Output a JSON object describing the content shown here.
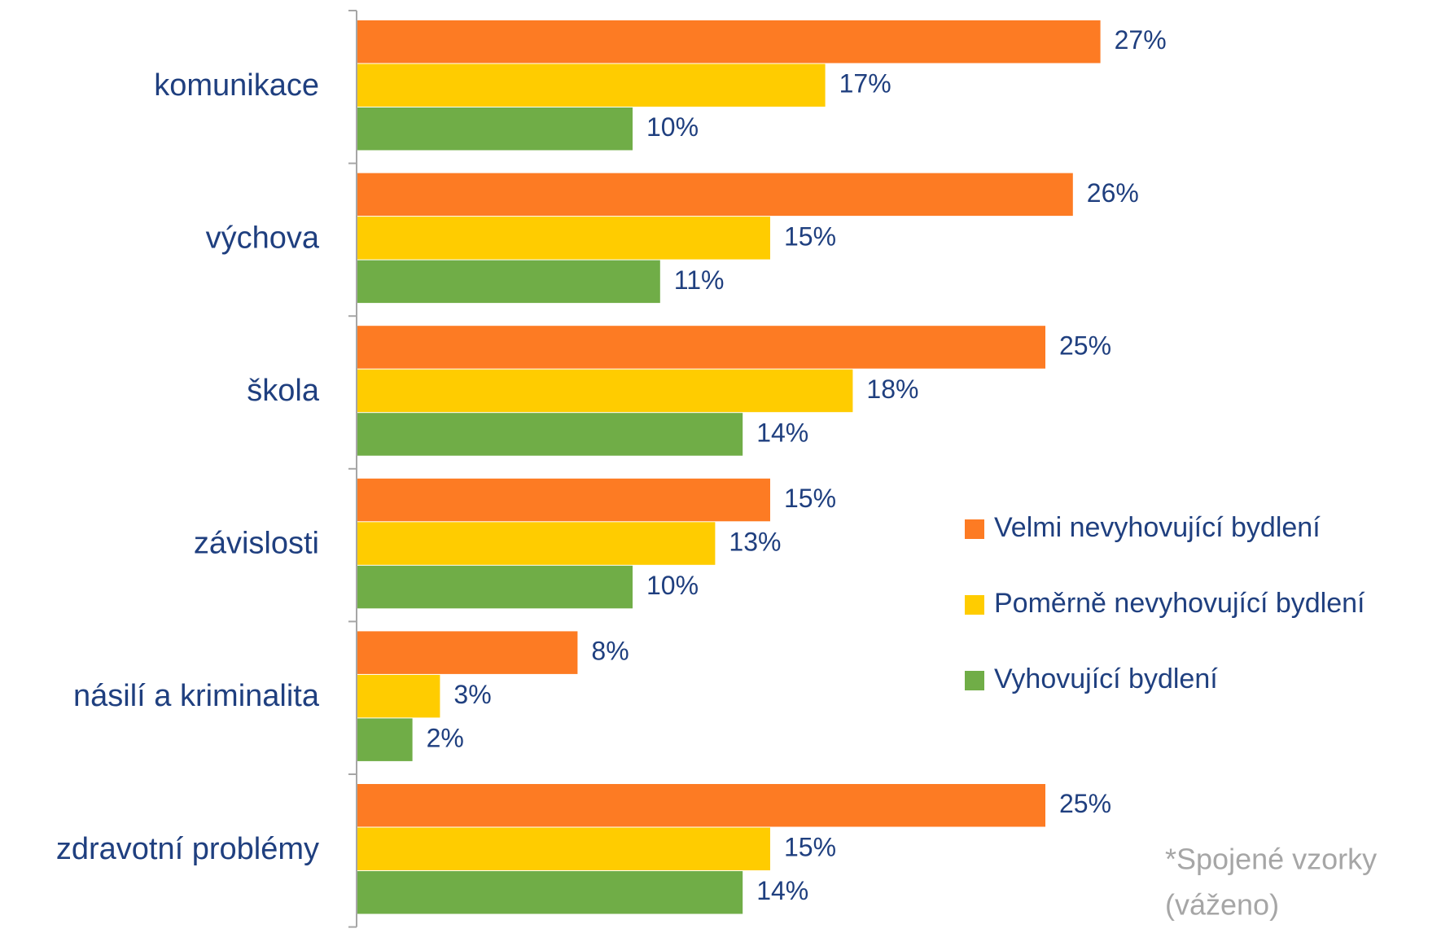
{
  "chart_data": {
    "type": "barh",
    "categories": [
      "komunikace",
      "výchova",
      "škola",
      "závislosti",
      "násilí a kriminalita",
      "zdravotní problémy"
    ],
    "series": [
      {
        "name": "Velmi nevyhovující bydlení",
        "color": "#fd7b23",
        "values": [
          27,
          26,
          25,
          15,
          8,
          25
        ],
        "value_labels": [
          "27%",
          "26%",
          "25%",
          "15%",
          "8%",
          "25%"
        ]
      },
      {
        "name": "Poměrně nevyhovující bydlení",
        "color": "#ffcc00",
        "values": [
          17,
          15,
          18,
          13,
          3,
          15
        ],
        "value_labels": [
          "17%",
          "15%",
          "18%",
          "13%",
          "3%",
          "15%"
        ]
      },
      {
        "name": "Vyhovující bydlení",
        "color": "#70ad47",
        "values": [
          10,
          11,
          14,
          10,
          2,
          14
        ],
        "value_labels": [
          "10%",
          "11%",
          "14%",
          "10%",
          "2%",
          "14%"
        ]
      }
    ],
    "annotations": [
      "*Spojené vzorky",
      "(váženo)"
    ]
  }
}
